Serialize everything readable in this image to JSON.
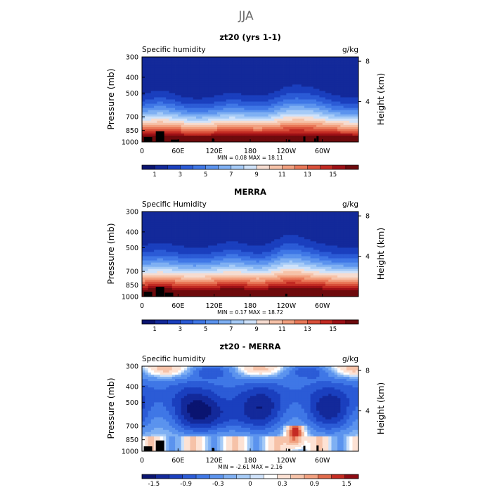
{
  "figure_title": "JJA",
  "palettes": {
    "full": [
      "#0a1470",
      "#13299a",
      "#1a3fbe",
      "#2b5bd6",
      "#3f77e6",
      "#5b93ee",
      "#7fb0f3",
      "#a6cbf7",
      "#cfe2fa",
      "#f6dcd0",
      "#f6c2a8",
      "#f2a07f",
      "#e97858",
      "#d9503a",
      "#c22a22",
      "#9d1016",
      "#6e0a0d"
    ],
    "diff": [
      "#0a1470",
      "#13299a",
      "#1a3fbe",
      "#2b5bd6",
      "#3f77e6",
      "#5b93ee",
      "#7fb0f3",
      "#a6cbf7",
      "#cfe2fa",
      "#ffffff",
      "#fde2d4",
      "#f6c2a8",
      "#f2a07f",
      "#e06a4b",
      "#c52b22",
      "#8e0b13"
    ]
  },
  "chart_data": [
    {
      "id": "panel-model",
      "type": "heatmap",
      "title": "zt20 (yrs 1-1)",
      "left_label": "Specific humidity",
      "right_label": "g/kg",
      "ylabel": "Pressure (mb)",
      "y2label": "Height (km)",
      "x_ticks": [
        "0",
        "60E",
        "120E",
        "180",
        "120W",
        "60W"
      ],
      "x_tick_lon": [
        0,
        60,
        120,
        180,
        240,
        300
      ],
      "y_ticks": [
        "300",
        "400",
        "500",
        "700",
        "850",
        "1000"
      ],
      "y_tick_p": [
        300,
        400,
        500,
        700,
        850,
        1000
      ],
      "y2_ticks": [
        "8",
        "4"
      ],
      "y2_tick_km": [
        8,
        4
      ],
      "min_max_text": "MIN =     0.08   MAX =   18.11",
      "colorbar_labels": [
        "1",
        "3",
        "5",
        "7",
        "9",
        "11",
        "13",
        "15"
      ],
      "colorbar_levels": [
        0.5,
        1,
        2,
        3,
        4,
        5,
        6,
        7,
        8,
        9,
        10,
        11,
        12,
        13,
        14,
        15
      ],
      "palette": "full",
      "mode": "full",
      "field": {
        "surface_max": 18.11,
        "base_threshold": 0.8,
        "depth_scale": 0.56,
        "depth_bumps": [
          {
            "lon": 30,
            "h": 0.08
          },
          {
            "lon": 95,
            "h": -0.02
          },
          {
            "lon": 150,
            "h": 0.05
          },
          {
            "lon": 245,
            "h": 0.12
          },
          {
            "lon": 285,
            "h": 0.1
          }
        ]
      },
      "terrain": [
        [
          10,
          0.25
        ],
        [
          30,
          0.55
        ],
        [
          55,
          0.12
        ],
        [
          118,
          0.18
        ],
        [
          245,
          0.12
        ],
        [
          270,
          0.28
        ],
        [
          288,
          0.18
        ],
        [
          292,
          0.3
        ]
      ]
    },
    {
      "id": "panel-merra",
      "type": "heatmap",
      "title": "MERRA",
      "left_label": "Specific Humidity",
      "right_label": "g/kg",
      "ylabel": "Pressure (mb)",
      "y2label": "Height (km)",
      "x_ticks": [
        "0",
        "60E",
        "120E",
        "180",
        "120W",
        "60W"
      ],
      "x_tick_lon": [
        0,
        60,
        120,
        180,
        240,
        300
      ],
      "y_ticks": [
        "300",
        "400",
        "500",
        "700",
        "850",
        "1000"
      ],
      "y_tick_p": [
        300,
        400,
        500,
        700,
        850,
        1000
      ],
      "y2_ticks": [
        "8",
        "4"
      ],
      "y2_tick_km": [
        8,
        4
      ],
      "min_max_text": "MIN =     0.17   MAX =   18.72",
      "colorbar_labels": [
        "1",
        "3",
        "5",
        "7",
        "9",
        "11",
        "13",
        "15"
      ],
      "colorbar_levels": [
        0.5,
        1,
        2,
        3,
        4,
        5,
        6,
        7,
        8,
        9,
        10,
        11,
        12,
        13,
        14,
        15
      ],
      "palette": "full",
      "mode": "full",
      "field": {
        "surface_max": 18.72,
        "base_threshold": 0.9,
        "depth_scale": 0.6,
        "depth_bumps": [
          {
            "lon": 30,
            "h": 0.06
          },
          {
            "lon": 150,
            "h": 0.07
          },
          {
            "lon": 245,
            "h": 0.15
          },
          {
            "lon": 285,
            "h": 0.05
          }
        ]
      },
      "terrain": [
        [
          10,
          0.25
        ],
        [
          30,
          0.5
        ],
        [
          45,
          0.2
        ],
        [
          240,
          0.15
        ]
      ]
    },
    {
      "id": "panel-diff",
      "type": "heatmap",
      "title": "zt20 - MERRA",
      "left_label": "Specific humidity",
      "right_label": "g/kg",
      "ylabel": "Pressure (mb)",
      "y2label": "Height (km)",
      "x_ticks": [
        "0",
        "60E",
        "120E",
        "180",
        "120W",
        "60W"
      ],
      "x_tick_lon": [
        0,
        60,
        120,
        180,
        240,
        300
      ],
      "y_ticks": [
        "300",
        "400",
        "500",
        "700",
        "850",
        "1000"
      ],
      "y_tick_p": [
        300,
        400,
        500,
        700,
        850,
        1000
      ],
      "y2_ticks": [
        "8",
        "4"
      ],
      "y2_tick_km": [
        8,
        4
      ],
      "min_max_text": "MIN =   -2.61   MAX =    2.16",
      "colorbar_labels": [
        "-1.5",
        "-0.9",
        "-0.3",
        "0",
        "0.3",
        "0.9",
        "1.5"
      ],
      "colorbar_levels": [
        -1.8,
        -1.5,
        -1.2,
        -0.9,
        -0.6,
        -0.3,
        -0.1,
        0,
        0.1,
        0.3,
        0.6,
        0.9,
        1.2,
        1.5,
        1.8
      ],
      "palette": "diff",
      "mode": "diff",
      "field": {
        "min": -2.61,
        "max": 2.16
      },
      "terrain": [
        [
          10,
          0.25
        ],
        [
          30,
          0.55
        ],
        [
          118,
          0.18
        ],
        [
          245,
          0.12
        ],
        [
          270,
          0.28
        ],
        [
          292,
          0.3
        ]
      ]
    }
  ]
}
